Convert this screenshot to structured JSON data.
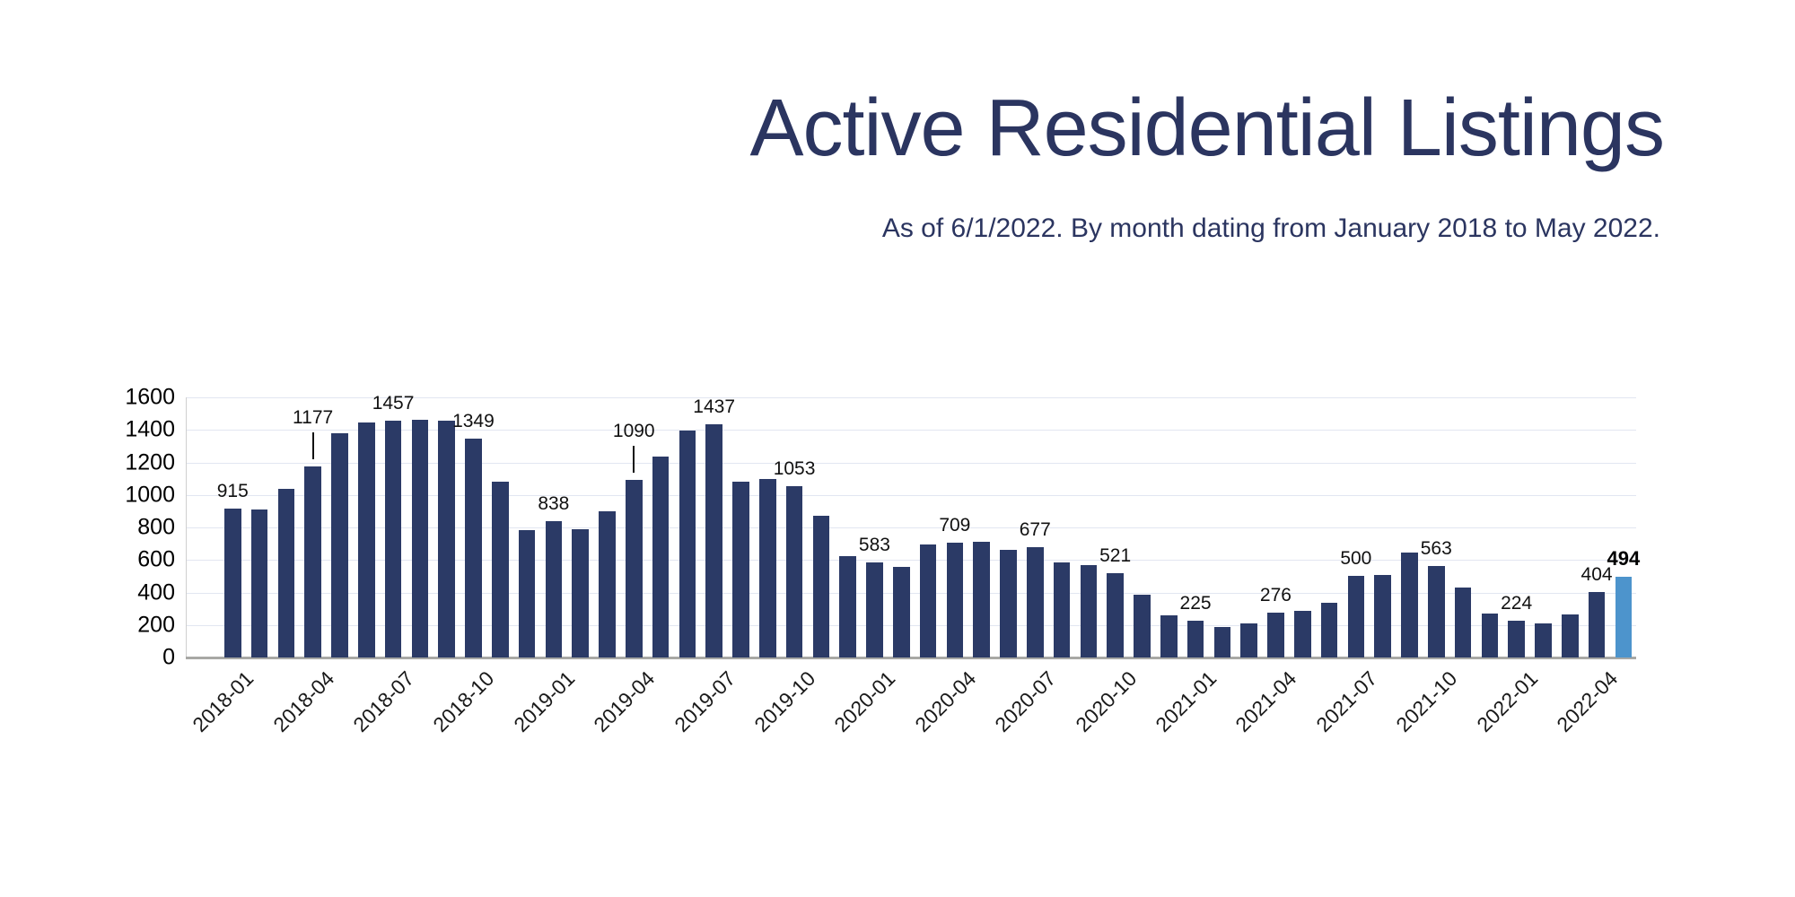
{
  "header": {
    "title": "Active Residential Listings",
    "subtitle": "As of 6/1/2022. By month dating from January 2018 to May 2022."
  },
  "chart_data": {
    "type": "bar",
    "title": "Active Residential Listings",
    "subtitle": "As of 6/1/2022. By month dating from January 2018 to May 2022.",
    "xlabel": "",
    "ylabel": "",
    "ylim": [
      0,
      1600
    ],
    "ytick_step": 200,
    "grid": true,
    "legend": "none",
    "y_tick_labels": [
      "0",
      "200",
      "400",
      "600",
      "800",
      "1000",
      "1200",
      "1400",
      "1600"
    ],
    "x_tick_labels": [
      "2018-01",
      "2018-04",
      "2018-07",
      "2018-10",
      "2019-01",
      "2019-04",
      "2019-07",
      "2019-10",
      "2020-01",
      "2020-04",
      "2020-07",
      "2020-10",
      "2021-01",
      "2021-04",
      "2021-07",
      "2021-10",
      "2022-01",
      "2022-04"
    ],
    "colors": {
      "bar": "#2b3a66",
      "highlight_bar": "#4d94cc",
      "title_text": "#2b3560",
      "gridline": "#e2e6f1",
      "axis_text": "#000000",
      "data_label_text": "#111111"
    },
    "points": [
      {
        "month": "2018-01",
        "value": 915,
        "label": "915"
      },
      {
        "month": "2018-02",
        "value": 910
      },
      {
        "month": "2018-03",
        "value": 1035
      },
      {
        "month": "2018-04",
        "value": 1177,
        "label": "1177",
        "leader": true
      },
      {
        "month": "2018-05",
        "value": 1380
      },
      {
        "month": "2018-06",
        "value": 1445
      },
      {
        "month": "2018-07",
        "value": 1457,
        "label": "1457"
      },
      {
        "month": "2018-08",
        "value": 1462
      },
      {
        "month": "2018-09",
        "value": 1455
      },
      {
        "month": "2018-10",
        "value": 1349,
        "label": "1349"
      },
      {
        "month": "2018-11",
        "value": 1080
      },
      {
        "month": "2018-12",
        "value": 785
      },
      {
        "month": "2019-01",
        "value": 838,
        "label": "838"
      },
      {
        "month": "2019-02",
        "value": 790
      },
      {
        "month": "2019-03",
        "value": 900
      },
      {
        "month": "2019-04",
        "value": 1090,
        "label": "1090",
        "leader": true
      },
      {
        "month": "2019-05",
        "value": 1235
      },
      {
        "month": "2019-06",
        "value": 1395
      },
      {
        "month": "2019-07",
        "value": 1437,
        "label": "1437"
      },
      {
        "month": "2019-08",
        "value": 1080
      },
      {
        "month": "2019-09",
        "value": 1100
      },
      {
        "month": "2019-10",
        "value": 1053,
        "label": "1053"
      },
      {
        "month": "2019-11",
        "value": 870
      },
      {
        "month": "2019-12",
        "value": 625
      },
      {
        "month": "2020-01",
        "value": 583,
        "label": "583"
      },
      {
        "month": "2020-02",
        "value": 555
      },
      {
        "month": "2020-03",
        "value": 695
      },
      {
        "month": "2020-04",
        "value": 709,
        "label": "709"
      },
      {
        "month": "2020-05",
        "value": 710
      },
      {
        "month": "2020-06",
        "value": 660
      },
      {
        "month": "2020-07",
        "value": 677,
        "label": "677"
      },
      {
        "month": "2020-08",
        "value": 585
      },
      {
        "month": "2020-09",
        "value": 570
      },
      {
        "month": "2020-10",
        "value": 521,
        "label": "521"
      },
      {
        "month": "2020-11",
        "value": 385
      },
      {
        "month": "2020-12",
        "value": 260
      },
      {
        "month": "2021-01",
        "value": 225,
        "label": "225"
      },
      {
        "month": "2021-02",
        "value": 190
      },
      {
        "month": "2021-03",
        "value": 210
      },
      {
        "month": "2021-04",
        "value": 276,
        "label": "276"
      },
      {
        "month": "2021-05",
        "value": 285
      },
      {
        "month": "2021-06",
        "value": 335
      },
      {
        "month": "2021-07",
        "value": 500,
        "label": "500"
      },
      {
        "month": "2021-08",
        "value": 505
      },
      {
        "month": "2021-09",
        "value": 645
      },
      {
        "month": "2021-10",
        "value": 563,
        "label": "563"
      },
      {
        "month": "2021-11",
        "value": 430
      },
      {
        "month": "2021-12",
        "value": 270
      },
      {
        "month": "2022-01",
        "value": 224,
        "label": "224"
      },
      {
        "month": "2022-02",
        "value": 210
      },
      {
        "month": "2022-03",
        "value": 265
      },
      {
        "month": "2022-04",
        "value": 404,
        "label": "404"
      },
      {
        "month": "2022-05",
        "value": 494,
        "label": "494",
        "emphasis": true,
        "highlight": true
      }
    ]
  }
}
